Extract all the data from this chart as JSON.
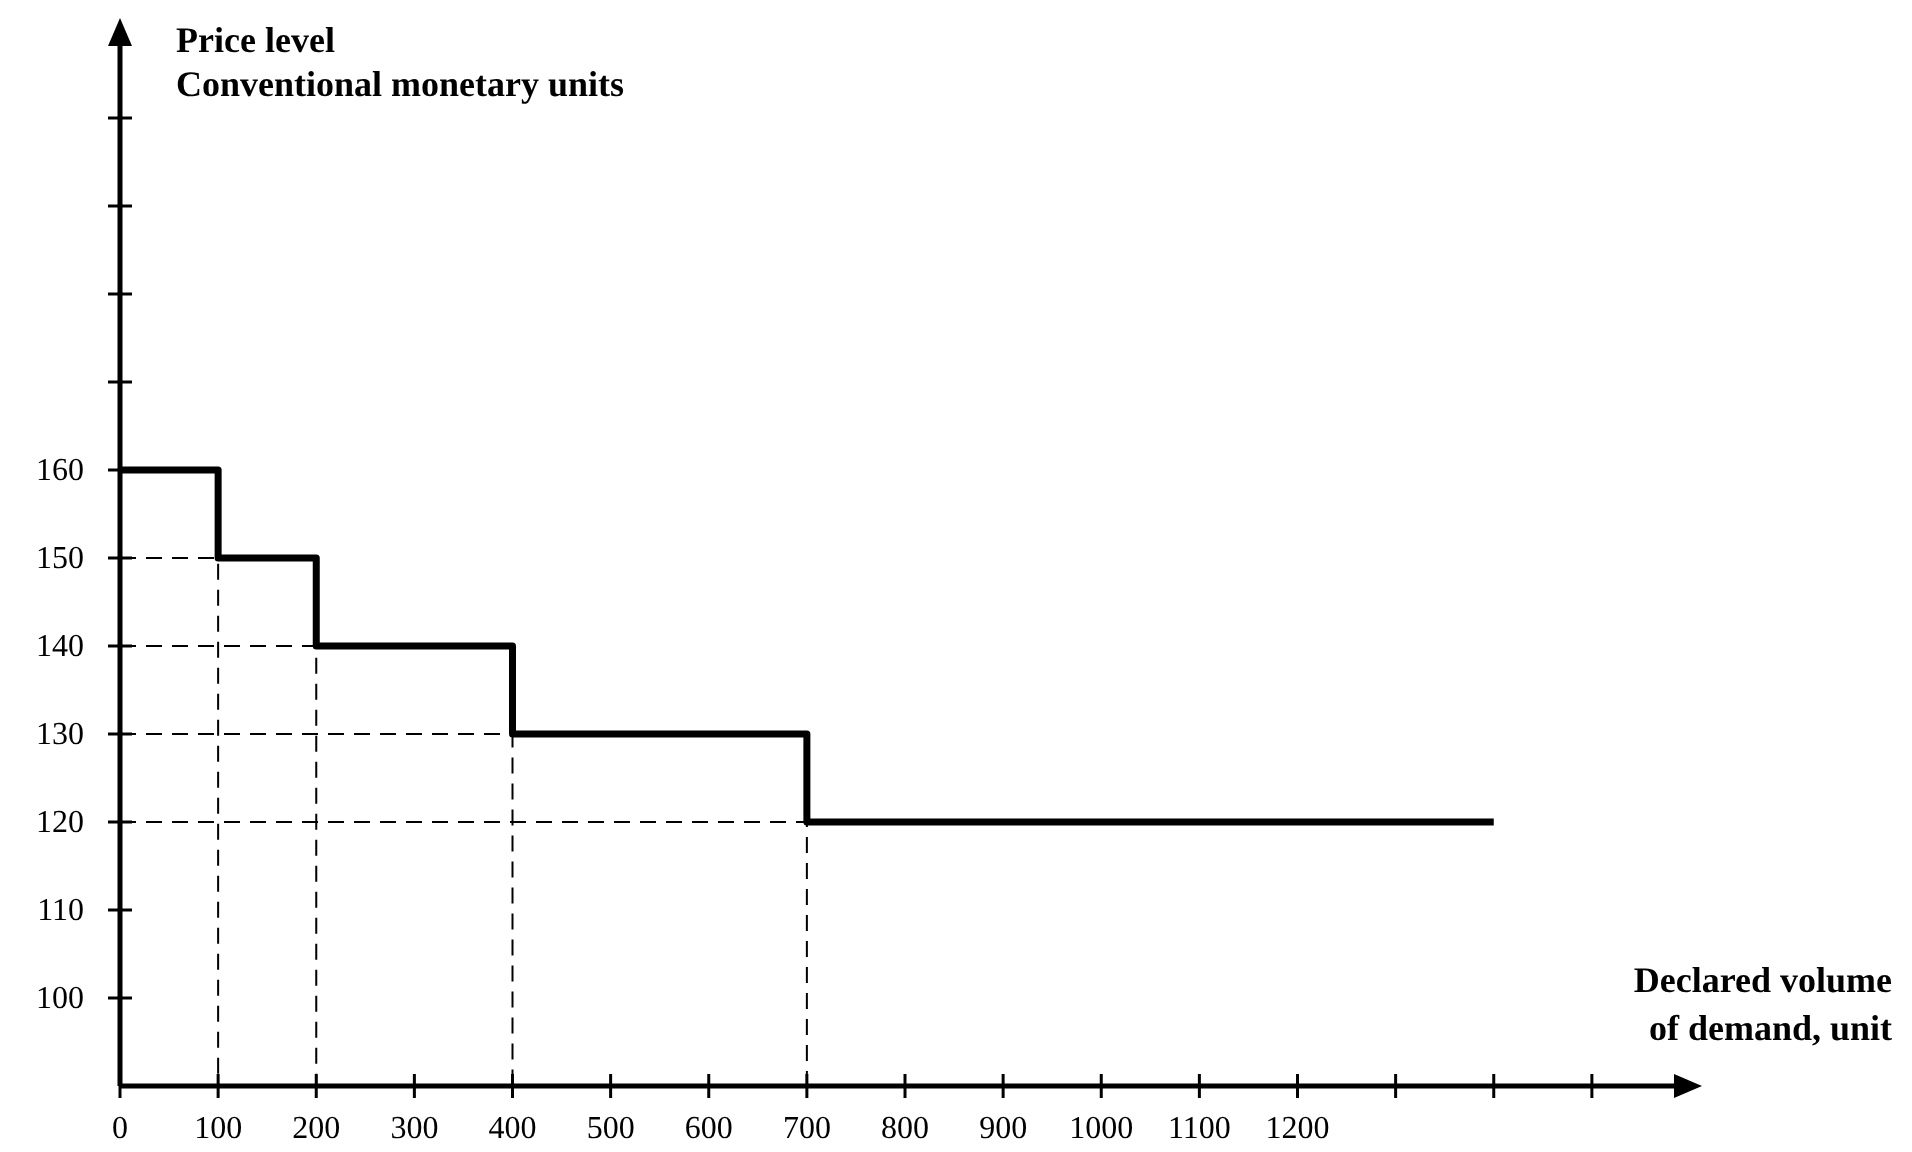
{
  "chart_data": {
    "type": "step",
    "ylabel": "Price level\nConventional monetary units",
    "xlabel": "Declared volume\nof demand, unit",
    "x": [
      0,
      100,
      200,
      400,
      700,
      1400
    ],
    "series": [
      {
        "color": "#000000",
        "values": [
          160,
          150,
          140,
          130,
          120,
          120
        ]
      },
      {
        "type": "line",
        "color": "#000000",
        "line_style": "dashed",
        "x": [
          0,
          100,
          100
        ],
        "values": [
          150,
          150,
          90
        ]
      },
      {
        "type": "line",
        "color": "#000000",
        "line_style": "dashed",
        "x": [
          0,
          200,
          200
        ],
        "values": [
          140,
          140,
          90
        ]
      },
      {
        "type": "line",
        "color": "#000000",
        "line_style": "dashed",
        "x": [
          0,
          400,
          400
        ],
        "values": [
          130,
          130,
          90
        ]
      },
      {
        "type": "line",
        "color": "#000000",
        "line_style": "dashed",
        "x": [
          0,
          700,
          700
        ],
        "values": [
          120,
          120,
          90
        ]
      }
    ],
    "xlim": [
      0,
      1600
    ],
    "ylim": [
      90,
      210
    ],
    "xticks": [
      0,
      100,
      200,
      300,
      400,
      500,
      600,
      700,
      800,
      900,
      1000,
      1100,
      1200,
      {
        "value": 1300,
        "label": null
      },
      {
        "value": 1400,
        "label": null
      },
      {
        "value": 1500,
        "label": null
      }
    ],
    "yticks": [
      100,
      110,
      120,
      130,
      140,
      150,
      160,
      {
        "value": 170,
        "label": null
      },
      {
        "value": 180,
        "label": null
      },
      {
        "value": 190,
        "label": null
      },
      {
        "value": 200,
        "label": null
      }
    ],
    "grid": false,
    "marker": "none",
    "line_style": "solid"
  }
}
